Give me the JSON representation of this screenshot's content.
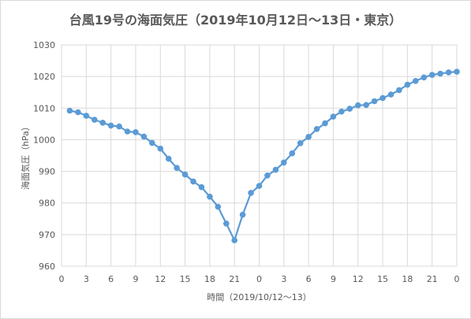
{
  "chart_data": {
    "type": "line",
    "title": "台風19号の海面気圧（2019年10月12日〜13日・東京）",
    "xlabel": "時間（2019/10/12〜13）",
    "ylabel": "海面気圧（hPa）",
    "ylim": [
      960,
      1030
    ],
    "y_ticks": [
      960,
      970,
      980,
      990,
      1000,
      1010,
      1020,
      1030
    ],
    "x_ticks": [
      "0",
      "3",
      "6",
      "9",
      "12",
      "15",
      "18",
      "21",
      "0",
      "3",
      "6",
      "9",
      "12",
      "15",
      "18",
      "21",
      "0"
    ],
    "grid": true,
    "legend": "none",
    "line_color": "#5b9bd5",
    "series": [
      {
        "x": [
          1,
          2,
          3,
          4,
          5,
          6,
          7,
          8,
          9,
          10,
          11,
          12,
          13,
          14,
          15,
          16,
          17,
          18,
          19,
          20,
          21,
          22,
          23,
          24,
          25,
          26,
          27,
          28,
          29,
          30,
          31,
          32,
          33,
          34,
          35,
          36,
          37,
          38,
          39,
          40,
          41,
          42,
          43,
          44,
          45,
          46,
          47,
          48
        ],
        "values": [
          1009.2,
          1008.7,
          1007.6,
          1006.3,
          1005.4,
          1004.5,
          1004.2,
          1002.6,
          1002.4,
          1001.0,
          999.0,
          997.2,
          994.0,
          991.1,
          989.0,
          986.8,
          985.0,
          982.0,
          978.8,
          973.5,
          968.2,
          976.3,
          983.2,
          985.4,
          988.7,
          990.5,
          992.8,
          995.7,
          998.9,
          1000.9,
          1003.4,
          1005.2,
          1007.3,
          1008.9,
          1009.8,
          1010.9,
          1011.0,
          1012.2,
          1013.2,
          1014.3,
          1015.7,
          1017.4,
          1018.6,
          1019.7,
          1020.5,
          1020.9,
          1021.3,
          1021.5
        ]
      }
    ]
  }
}
